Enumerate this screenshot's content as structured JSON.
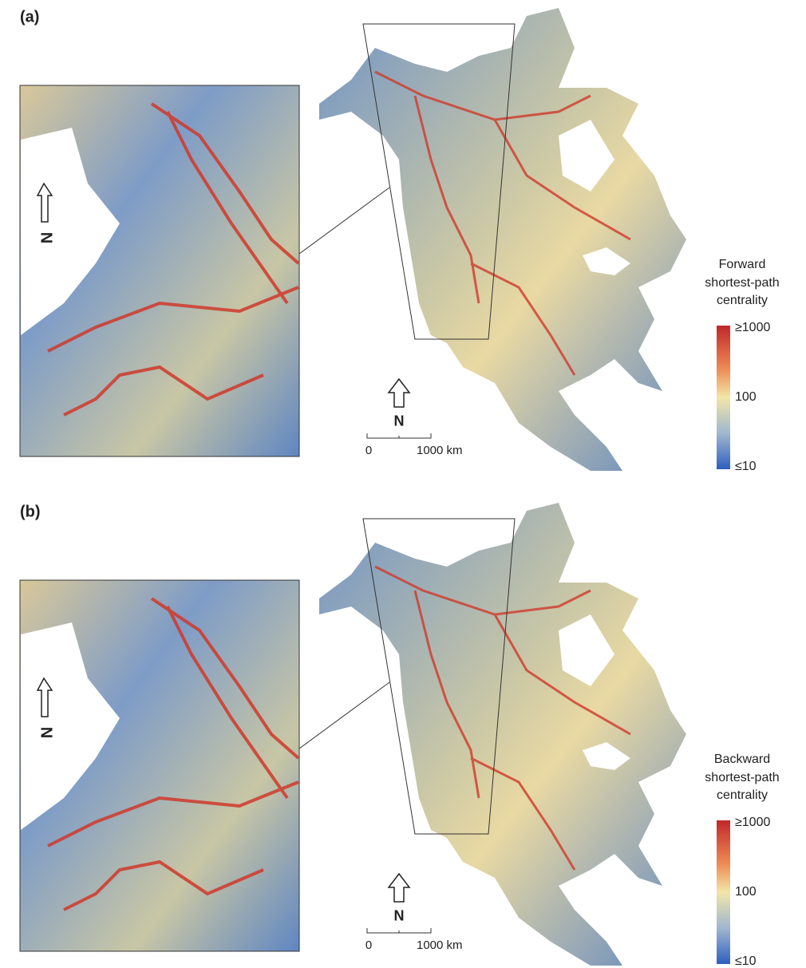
{
  "panels": [
    {
      "label": "(a)",
      "legend": {
        "title_lines": [
          "Forward",
          "shortest-path",
          "centrality"
        ],
        "ticks": [
          "≥1000",
          "100",
          "≤10"
        ]
      },
      "scale_bar": {
        "start": "0",
        "end": "1000 km"
      },
      "north": "N",
      "inset_north": "N"
    },
    {
      "label": "(b)",
      "legend": {
        "title_lines": [
          "Backward",
          "shortest-path",
          "centrality"
        ],
        "ticks": [
          "≥1000",
          "100",
          "≤10"
        ]
      },
      "scale_bar": {
        "start": "0",
        "end": "1000 km"
      },
      "north": "N",
      "inset_north": "N"
    }
  ]
}
